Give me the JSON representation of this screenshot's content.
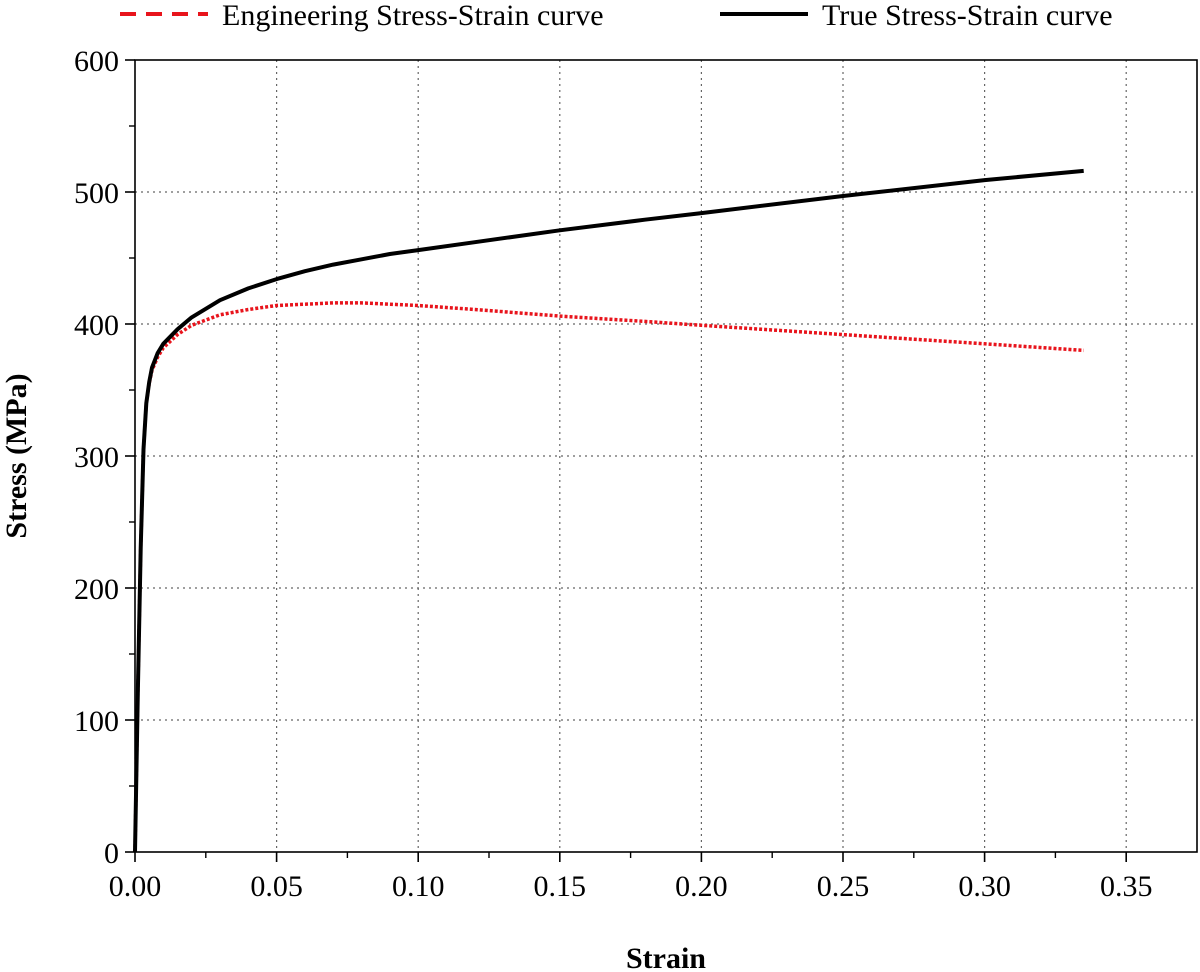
{
  "chart_data": {
    "type": "line",
    "title": "",
    "xlabel": "Strain",
    "ylabel": "Stress (MPa)",
    "xlim": [
      0,
      0.375
    ],
    "ylim": [
      0,
      600
    ],
    "x_ticks": [
      "0.00",
      "0.05",
      "0.10",
      "0.15",
      "0.20",
      "0.25",
      "0.30",
      "0.35"
    ],
    "y_ticks": [
      "0",
      "100",
      "200",
      "300",
      "400",
      "500",
      "600"
    ],
    "grid": true,
    "legend_position": "top",
    "series": [
      {
        "name": "Engineering Stress-Strain curve",
        "color": "#e8141c",
        "style": "dashed",
        "x": [
          0,
          0.001,
          0.002,
          0.003,
          0.004,
          0.005,
          0.006,
          0.008,
          0.01,
          0.015,
          0.02,
          0.03,
          0.04,
          0.05,
          0.06,
          0.07,
          0.08,
          0.09,
          0.1,
          0.12,
          0.15,
          0.18,
          0.2,
          0.25,
          0.3,
          0.335
        ],
        "y": [
          0,
          120,
          230,
          305,
          340,
          355,
          365,
          375,
          382,
          392,
          399,
          407,
          411,
          414,
          415,
          416,
          416,
          415,
          414,
          411,
          406,
          402,
          399,
          392,
          385,
          380
        ]
      },
      {
        "name": "True Stress-Strain curve",
        "color": "#000000",
        "style": "solid",
        "x": [
          0,
          0.001,
          0.002,
          0.003,
          0.004,
          0.005,
          0.006,
          0.008,
          0.01,
          0.015,
          0.02,
          0.03,
          0.04,
          0.05,
          0.06,
          0.07,
          0.08,
          0.09,
          0.1,
          0.12,
          0.15,
          0.18,
          0.2,
          0.25,
          0.3,
          0.335
        ],
        "y": [
          0,
          120,
          230,
          305,
          340,
          356,
          367,
          378,
          385,
          396,
          405,
          418,
          427,
          434,
          440,
          445,
          449,
          453,
          456,
          462,
          471,
          479,
          484,
          497,
          509,
          516
        ]
      }
    ]
  }
}
